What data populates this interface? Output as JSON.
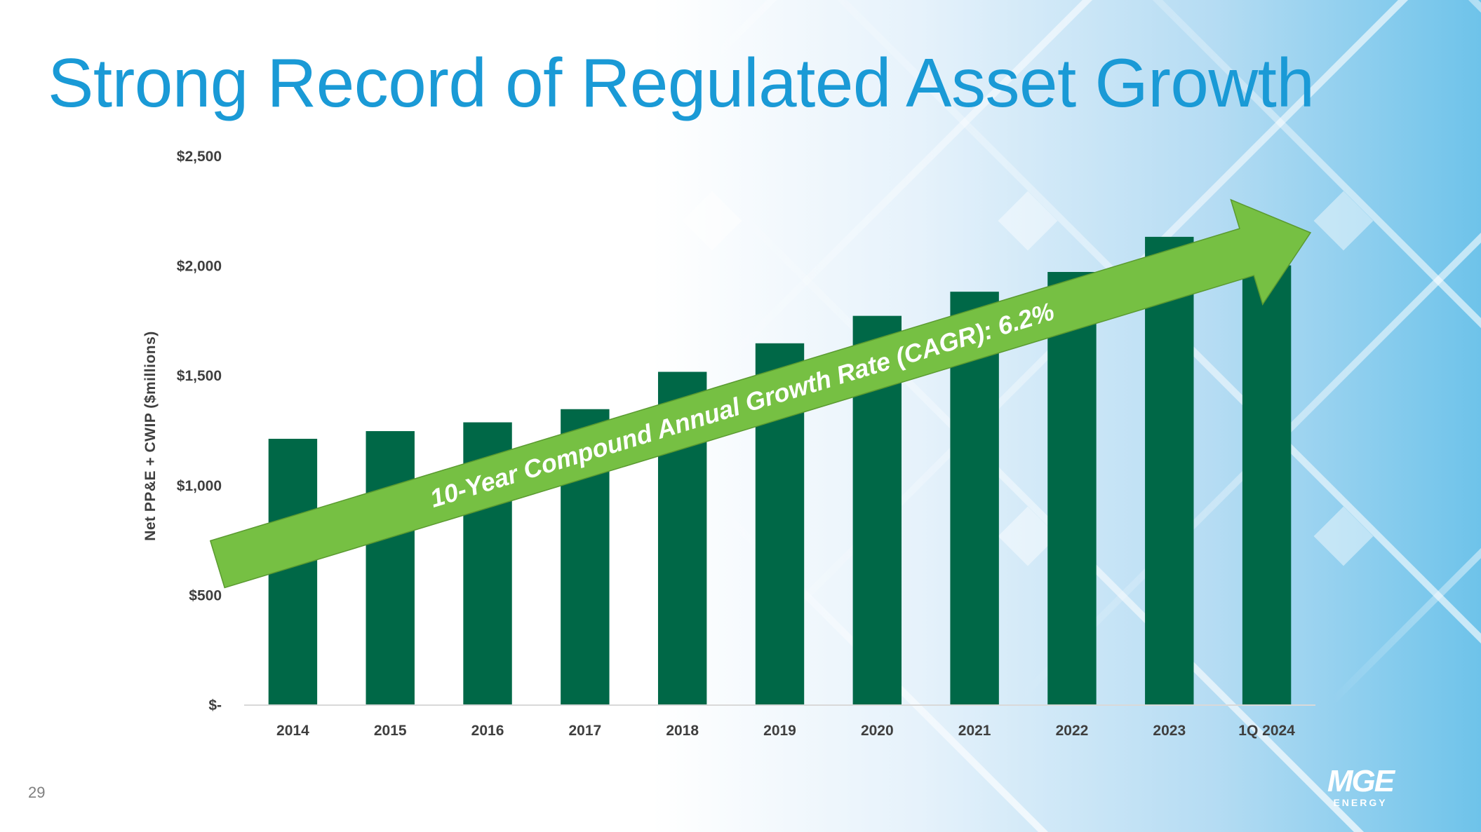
{
  "title": "Strong Record of Regulated Asset Growth",
  "page_number": "29",
  "logo": {
    "main": "MGE",
    "sub": "ENERGY"
  },
  "colors": {
    "title": "#1a9ad6",
    "bar": "#006847",
    "arrow": "#76c043",
    "bg_blue": "#6ec3ea",
    "axis_text": "#3f3f3f"
  },
  "chart_data": {
    "type": "bar",
    "title": "",
    "xlabel": "",
    "ylabel": "Net PP&E + CWIP ($millions)",
    "categories": [
      "2014",
      "2015",
      "2016",
      "2017",
      "2018",
      "2019",
      "2020",
      "2021",
      "2022",
      "2023",
      "1Q 2024"
    ],
    "values": [
      1210,
      1245,
      1285,
      1345,
      1515,
      1645,
      1770,
      1880,
      1970,
      2130,
      2000
    ],
    "ylim": [
      0,
      2500
    ],
    "y_ticks": [
      0,
      500,
      1000,
      1500,
      2000,
      2500
    ],
    "y_tick_labels": [
      "$-",
      "$500",
      "$1,000",
      "$1,500",
      "$2,000",
      "$2,500"
    ],
    "grid": false,
    "annotation": "10-Year Compound Annual Growth Rate (CAGR): 6.2%"
  }
}
